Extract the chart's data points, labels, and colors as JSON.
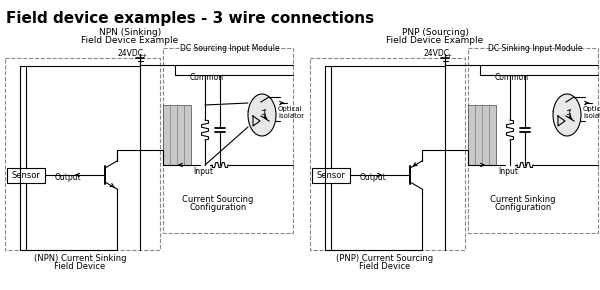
{
  "title": "Field device examples - 3 wire connections",
  "bg_color": "#ffffff",
  "line_color": "#000000",
  "dashed_color": "#888888",
  "npn_subtitle1": "NPN (Sinking)",
  "npn_subtitle2": "Field Device Example",
  "pnp_subtitle1": "PNP (Sourcing)",
  "pnp_subtitle2": "Field Device Example",
  "npn_module_label": "DC Sourcing Input Module",
  "pnp_module_label": "DC Sinking Input Module",
  "npn_bottom1": "(NPN) Current Sinking",
  "npn_bottom2": "Field Device",
  "pnp_bottom1": "(PNP) Current Sourcing",
  "pnp_bottom2": "Field Device",
  "npn_config1": "Current Sourcing",
  "npn_config2": "Configuration",
  "pnp_config1": "Current Sinking",
  "pnp_config2": "Configuration",
  "vdc_label": "24VDC",
  "common_label": "Common",
  "input_label": "Input",
  "output_label": "Output",
  "sensor_label": "Sensor",
  "optical_label1": "Optical",
  "optical_label2": "Isolator"
}
